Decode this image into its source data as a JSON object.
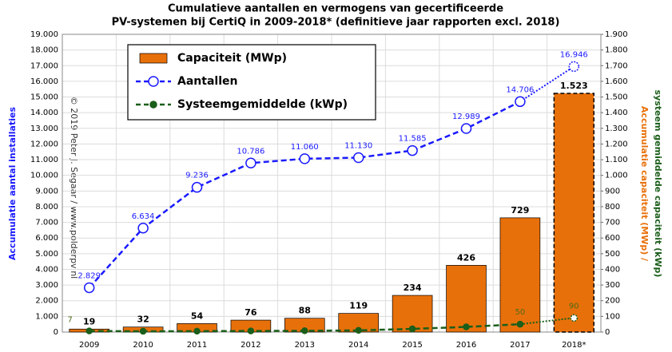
{
  "chart_data": {
    "type": "bar",
    "title": "Cumulatieve aantallen en vermogens van gecertificeerde",
    "subtitle": "PV-systemen bij CertiQ in 2009-2018* (definitieve jaar rapporten excl. 2018)",
    "ylabel": "Accumulatie aantal installaties",
    "y2label": "Accumulatie capaciteit (MWp) /",
    "y2label_2": "systeem gemiddelde capaciteit (kWp)",
    "annotation": "© 2019 Peter J. Segaar / www.polderpv.nl",
    "categories": [
      "2009",
      "2010",
      "2011",
      "2012",
      "2013",
      "2014",
      "2015",
      "2016",
      "2017",
      "2018*"
    ],
    "series": [
      {
        "name": "Capaciteit (MWp)",
        "type": "bar",
        "axis": "y2",
        "color": "#e8700a",
        "values": [
          19,
          32,
          54,
          76,
          88,
          119,
          234,
          426,
          729,
          1523
        ],
        "value_labels": [
          "19",
          "32",
          "54",
          "76",
          "88",
          "119",
          "234",
          "426",
          "729",
          "1.523"
        ]
      },
      {
        "name": "Aantallen",
        "type": "line",
        "axis": "y",
        "color": "#1a1aff",
        "values": [
          2829,
          6634,
          9236,
          10786,
          11060,
          11130,
          11585,
          12989,
          14706,
          16946
        ],
        "value_labels": [
          "2.829",
          "6.634",
          "9.236",
          "10.786",
          "11.060",
          "11.130",
          "11.585",
          "12.989",
          "14.706",
          "16.946"
        ]
      },
      {
        "name": "Systeemgemiddelde (kWp)",
        "type": "line",
        "axis": "y2",
        "color": "#1a5e1a",
        "values": [
          7,
          4.8,
          5.8,
          7,
          8,
          10.7,
          20.2,
          32.8,
          50,
          90
        ],
        "value_labels": [
          "7",
          null,
          null,
          null,
          null,
          null,
          null,
          null,
          "50",
          "90"
        ]
      }
    ],
    "ylim": [
      0,
      19000
    ],
    "yticks": [
      0,
      {
        "value": 1000,
        "label": "1.000"
      },
      {
        "value": 2000,
        "label": "2.000"
      },
      {
        "value": 3000,
        "label": "3.000"
      },
      {
        "value": 4000,
        "label": "4.000"
      },
      {
        "value": 5000,
        "label": "5.000"
      },
      {
        "value": 6000,
        "label": "6.000"
      },
      {
        "value": 7000,
        "label": "7.000"
      },
      {
        "value": 8000,
        "label": "8.000"
      },
      {
        "value": 9000,
        "label": "9.000"
      },
      {
        "value": 10000,
        "label": "10.000"
      },
      {
        "value": 11000,
        "label": "11.000"
      },
      {
        "value": 12000,
        "label": "12.000"
      },
      {
        "value": 13000,
        "label": "13.000"
      },
      {
        "value": 14000,
        "label": "14.000"
      },
      {
        "value": 15000,
        "label": "15.000"
      },
      {
        "value": 16000,
        "label": "16.000"
      },
      {
        "value": 17000,
        "label": "17.000"
      },
      {
        "value": 18000,
        "label": "18.000"
      },
      {
        "value": 19000,
        "label": "19.000"
      }
    ],
    "y2lim": [
      0,
      1900
    ],
    "y2ticks": [
      0,
      100,
      200,
      300,
      400,
      500,
      600,
      700,
      800,
      900,
      {
        "value": 1000,
        "label": "1.000"
      },
      {
        "value": 1100,
        "label": "1.100"
      },
      {
        "value": 1200,
        "label": "1.200"
      },
      {
        "value": 1300,
        "label": "1.300"
      },
      {
        "value": 1400,
        "label": "1.400"
      },
      {
        "value": 1500,
        "label": "1.500"
      },
      {
        "value": 1600,
        "label": "1.600"
      },
      {
        "value": 1700,
        "label": "1.700"
      },
      {
        "value": 1800,
        "label": "1.800"
      },
      {
        "value": 1900,
        "label": "1.900"
      }
    ],
    "grid": true
  }
}
